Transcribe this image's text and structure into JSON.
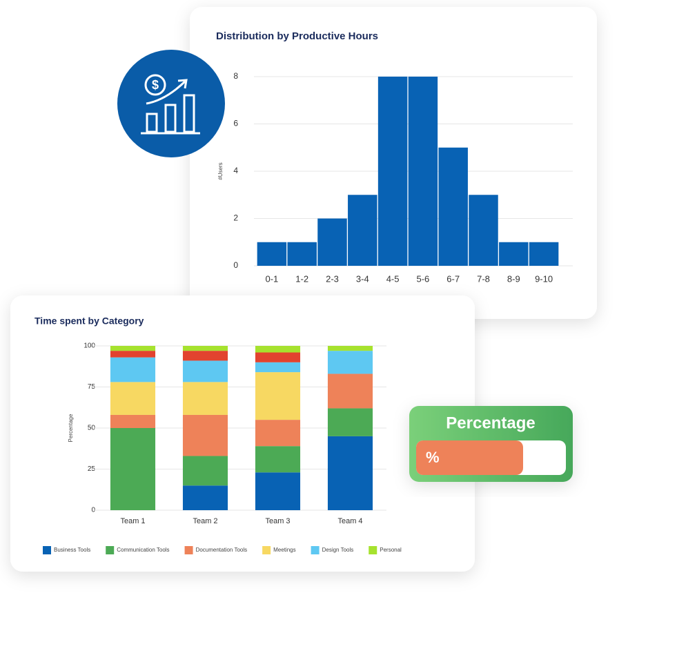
{
  "chart_data": [
    {
      "type": "bar",
      "title": "Distribution by Productive Hours",
      "ylabel": "#Users",
      "categories": [
        "0-1",
        "1-2",
        "2-3",
        "3-4",
        "4-5",
        "5-6",
        "6-7",
        "7-8",
        "8-9",
        "9-10"
      ],
      "values": [
        1,
        1,
        2,
        3,
        8,
        8,
        5,
        3,
        1,
        1
      ],
      "color": "#0862b4",
      "ylim": [
        0,
        8
      ],
      "yticks": [
        0,
        2,
        4,
        6,
        8
      ],
      "grid": true
    },
    {
      "type": "stacked_bar",
      "title": "Time spent by Category",
      "ylabel": "Percentage",
      "categories": [
        "Team 1",
        "Team 2",
        "Team 3",
        "Team 4"
      ],
      "series": [
        {
          "name": "Business Tools",
          "color": "#0862b4",
          "values": [
            0,
            15,
            23,
            45
          ]
        },
        {
          "name": "Communication Tools",
          "color": "#4caa55",
          "values": [
            50,
            18,
            16,
            17
          ]
        },
        {
          "name": "Documentation Tools",
          "color": "#ee8259",
          "values": [
            8,
            25,
            16,
            21
          ]
        },
        {
          "name": "Meetings",
          "color": "#f7d862",
          "values": [
            20,
            20,
            29,
            0
          ]
        },
        {
          "name": "Design Tools",
          "color": "#5ec8f2",
          "values": [
            15,
            13,
            6,
            14
          ]
        },
        {
          "name": null,
          "color": "#e2432f",
          "values": [
            4,
            6,
            6,
            0
          ]
        },
        {
          "name": "Personal",
          "color": "#a6e22e",
          "values": [
            3,
            3,
            4,
            3
          ]
        }
      ],
      "ylim": [
        0,
        100
      ],
      "yticks": [
        0,
        25,
        50,
        75,
        100
      ],
      "grid": true
    }
  ],
  "badge": {
    "title": "Percentage",
    "symbol": "%"
  }
}
